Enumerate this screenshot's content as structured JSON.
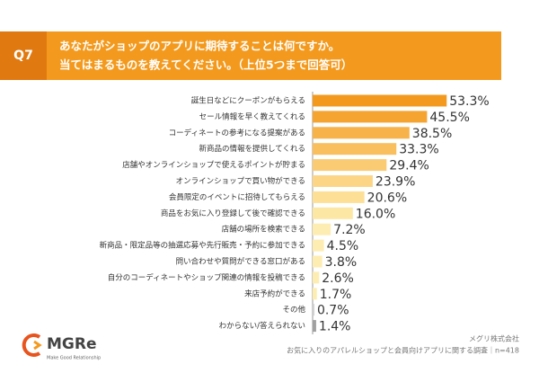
{
  "header": {
    "label": "Q7",
    "lines": [
      "あなたがショップのアプリに期待することは何ですか。",
      "当てはまるものを教えてください。（上位5つまで回答可）"
    ]
  },
  "chart_data": {
    "type": "hbar",
    "categories": [
      "誕生日などにクーポンがもらえる",
      "セール情報を早く教えてくれる",
      "コーディネートの参考になる提案がある",
      "新商品の情報を提供してくれる",
      "店舗やオンラインショップで使えるポイントが貯まる",
      "オンラインショップで買い物ができる",
      "会員限定のイベントに招待してもらえる",
      "商品をお気に入り登録して後で確認できる",
      "店舗の場所を検索できる",
      "新商品・限定品等の抽選応募や先行販売・予約に参加できる",
      "問い合わせや質問ができる窓口がある",
      "自分のコーディネートやショップ関連の情報を投稿できる",
      "来店予約ができる",
      "その他",
      "わからない/答えられない"
    ],
    "values": [
      53.3,
      45.5,
      38.5,
      33.3,
      29.4,
      23.9,
      20.6,
      16.0,
      7.2,
      4.5,
      3.8,
      2.6,
      1.7,
      0.7,
      1.4
    ],
    "value_labels": [
      "53.3%",
      "45.5%",
      "38.5%",
      "33.3%",
      "29.4%",
      "23.9%",
      "20.6%",
      "16.0%",
      "7.2%",
      "4.5%",
      "3.8%",
      "2.6%",
      "1.7%",
      "0.7%",
      "1.4%"
    ],
    "colors": [
      "#f39a1e",
      "#f5a432",
      "#f7b24a",
      "#f9bf5f",
      "#fbcb74",
      "#fcd686",
      "#fde096",
      "#fde7a4",
      "#feedb2",
      "#feedb2",
      "#feedb2",
      "#feedb2",
      "#feedb2",
      "#d0d0d0",
      "#a0a0a0"
    ]
  },
  "footer": {
    "brand": "MGRe",
    "tagline": "Make Good Relationship",
    "company": "メグリ株式会社",
    "source": "お気に入りのアパレルショップと会員向けアプリに関する調査｜n=418"
  }
}
